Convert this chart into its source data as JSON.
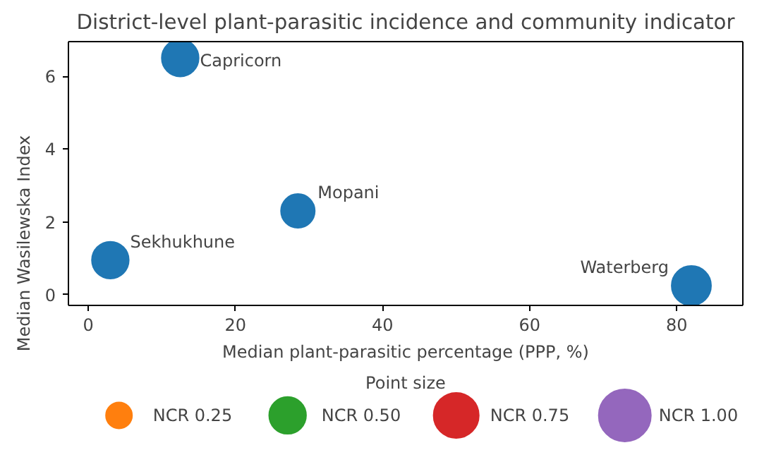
{
  "chart_data": {
    "type": "bubble",
    "title": "District-level plant-parasitic incidence and community indicator",
    "xlabel": "Median plant-parasitic percentage (PPP, %)",
    "ylabel": "Median Wasilewska Index",
    "x": [
      12.5,
      28.5,
      3,
      82
    ],
    "series": [
      {
        "color": "#1f77b4",
        "values": [
          6.5,
          2.3,
          0.95,
          0.25
        ],
        "sizes": [
          0.5,
          0.42,
          0.5,
          0.57
        ]
      }
    ],
    "annotations": [
      {
        "text": "Capricorn",
        "x": 12.5,
        "y": 6.5
      },
      {
        "text": "Mopani",
        "x": 28.5,
        "y": 2.3
      },
      {
        "text": "Sekhukhune",
        "x": 3,
        "y": 0.95
      },
      {
        "text": "Waterberg",
        "x": 82,
        "y": 0.25
      }
    ],
    "xlim": [
      -2.7,
      89
    ],
    "ylim": [
      -0.3,
      6.95
    ],
    "xticks": [
      0,
      20,
      40,
      60,
      80
    ],
    "yticks": [
      0,
      2,
      4,
      6
    ],
    "grid": false,
    "legend_title": "Point size",
    "size_legend": [
      {
        "value": 0.25,
        "label": "NCR 0.25"
      },
      {
        "value": 0.5,
        "label": "NCR 0.50"
      },
      {
        "value": 0.75,
        "label": "NCR 0.75"
      },
      {
        "value": 1.0,
        "label": "NCR 1.00"
      }
    ],
    "colors": [
      "#ff7f0e",
      "#2ca02c",
      "#d62728",
      "#9467bd"
    ]
  }
}
